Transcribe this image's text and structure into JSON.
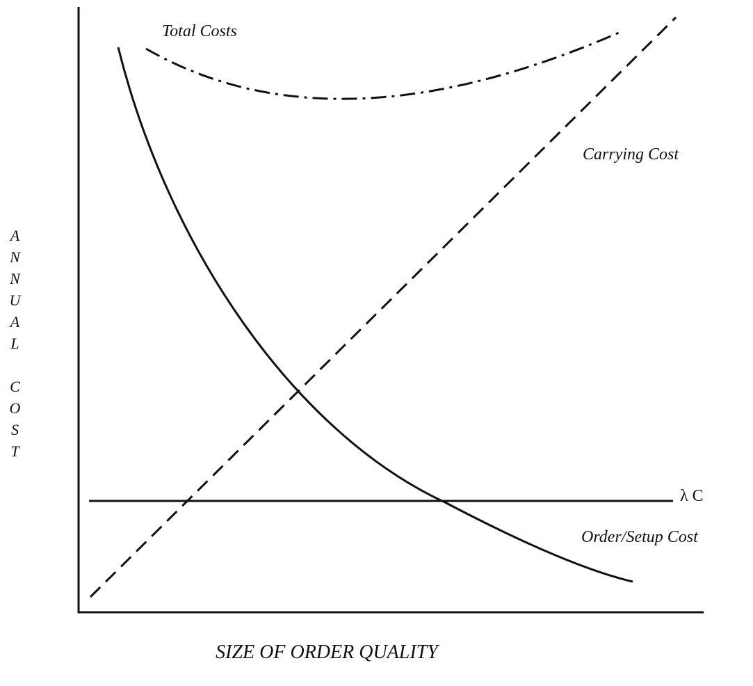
{
  "labels": {
    "total_costs": "Total Costs",
    "carrying_cost": "Carrying Cost",
    "lambda_c": "λ C",
    "order_setup_cost": "Order/Setup Cost"
  },
  "y_axis_label": "ANNUAL COST",
  "x_axis_label": "SIZE OF ORDER QUALITY"
}
